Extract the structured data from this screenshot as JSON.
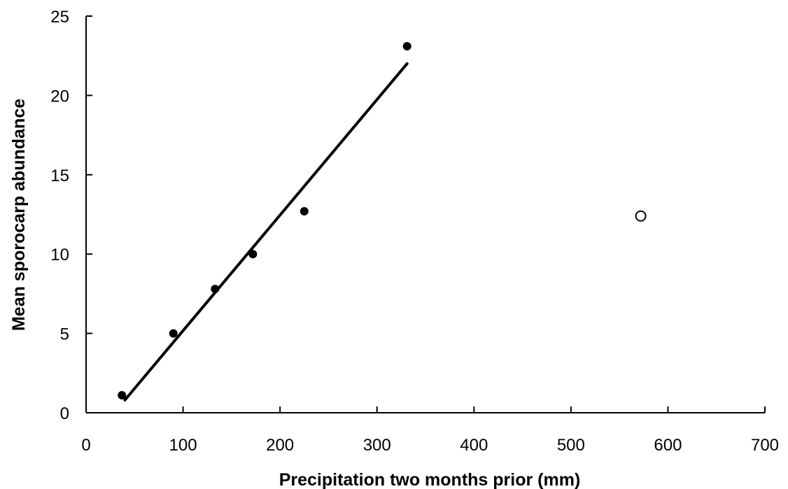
{
  "chart_data": {
    "type": "scatter",
    "title": "",
    "xlabel": "Precipitation two months prior (mm)",
    "ylabel": "Mean sporocarp abundance",
    "xlim": [
      0,
      700
    ],
    "ylim": [
      0,
      25
    ],
    "x_ticks": [
      0,
      100,
      200,
      300,
      400,
      500,
      600,
      700
    ],
    "y_ticks": [
      0,
      5,
      10,
      15,
      20,
      25
    ],
    "x_tick_labels": [
      "0",
      "100",
      "200",
      "300",
      "400",
      "500",
      "600",
      "700"
    ],
    "y_tick_labels": [
      "0",
      "5",
      "10",
      "15",
      "20",
      "25"
    ],
    "grid": false,
    "series": [
      {
        "marker": "filled-circle",
        "color": "#000000",
        "points": [
          {
            "x": 37,
            "y": 1.1
          },
          {
            "x": 90,
            "y": 5.0
          },
          {
            "x": 133,
            "y": 7.8
          },
          {
            "x": 172,
            "y": 10.0
          },
          {
            "x": 225,
            "y": 12.7
          },
          {
            "x": 331,
            "y": 23.1
          }
        ]
      },
      {
        "marker": "open-circle",
        "color": "#000000",
        "points": [
          {
            "x": 572,
            "y": 12.4
          }
        ]
      }
    ],
    "fit_line": {
      "from": {
        "x": 40,
        "y": 0.8
      },
      "to": {
        "x": 331,
        "y": 22.0
      }
    }
  }
}
